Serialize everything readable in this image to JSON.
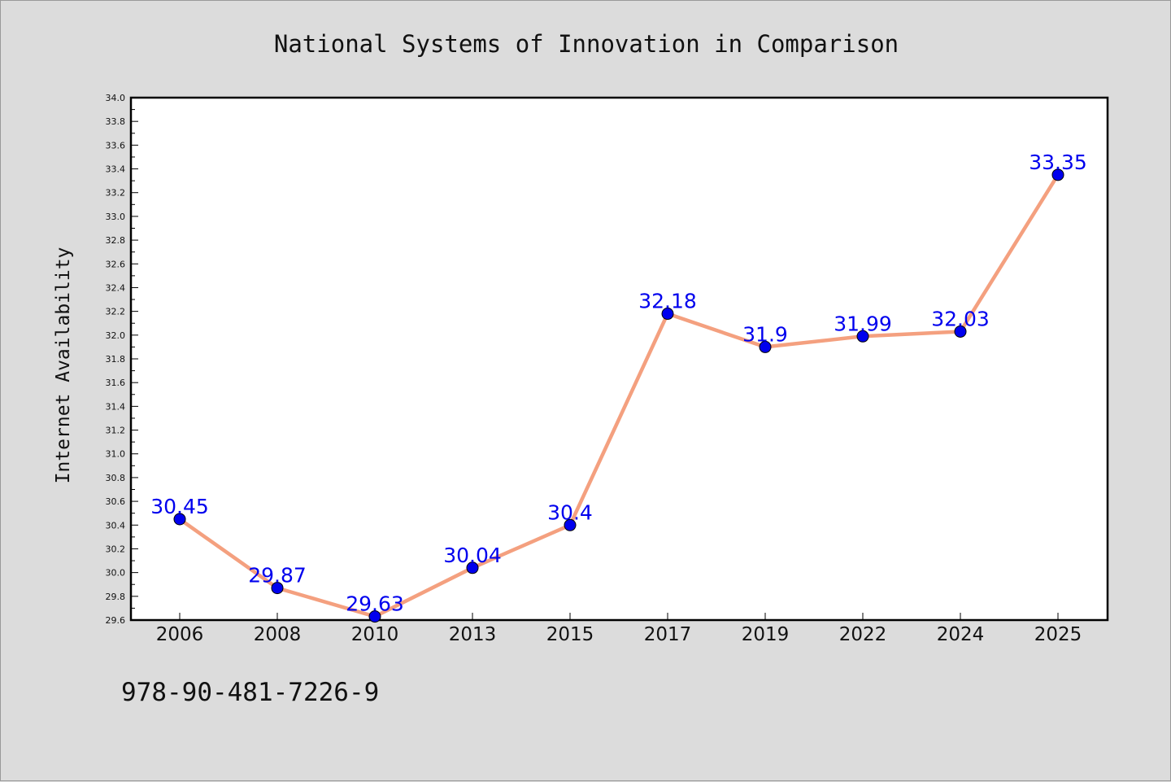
{
  "chart_data": {
    "type": "line",
    "title": "National Systems of Innovation in Comparison",
    "xlabel": "",
    "ylabel": "Internet Availability",
    "categories": [
      "2006",
      "2008",
      "2010",
      "2013",
      "2015",
      "2017",
      "2019",
      "2022",
      "2024",
      "2025"
    ],
    "series": [
      {
        "values": [
          30.45,
          29.87,
          29.63,
          30.04,
          30.4,
          32.18,
          31.9,
          31.99,
          32.03,
          33.35
        ],
        "labels": [
          "30.45",
          "29.87",
          "29.63",
          "30.04",
          "30.4",
          "32.18",
          "31.9",
          "31.99",
          "32.03",
          "33.35"
        ],
        "line_color": "#f4a07f",
        "marker_color": "#0000ee",
        "label_color": "#0000ee"
      }
    ],
    "ylim": [
      29.6,
      34.0
    ],
    "yticks": [
      "29.6",
      "29.8",
      "30.0",
      "30.2",
      "30.4",
      "30.6",
      "30.8",
      "31.0",
      "31.2",
      "31.4",
      "31.6",
      "31.8",
      "32.0",
      "32.2",
      "32.4",
      "32.6",
      "32.8",
      "33.0",
      "33.2",
      "33.4",
      "33.6",
      "33.8",
      "34.0"
    ],
    "grid": false,
    "legend": "none"
  },
  "footer": {
    "isbn": "978-90-481-7226-9"
  }
}
